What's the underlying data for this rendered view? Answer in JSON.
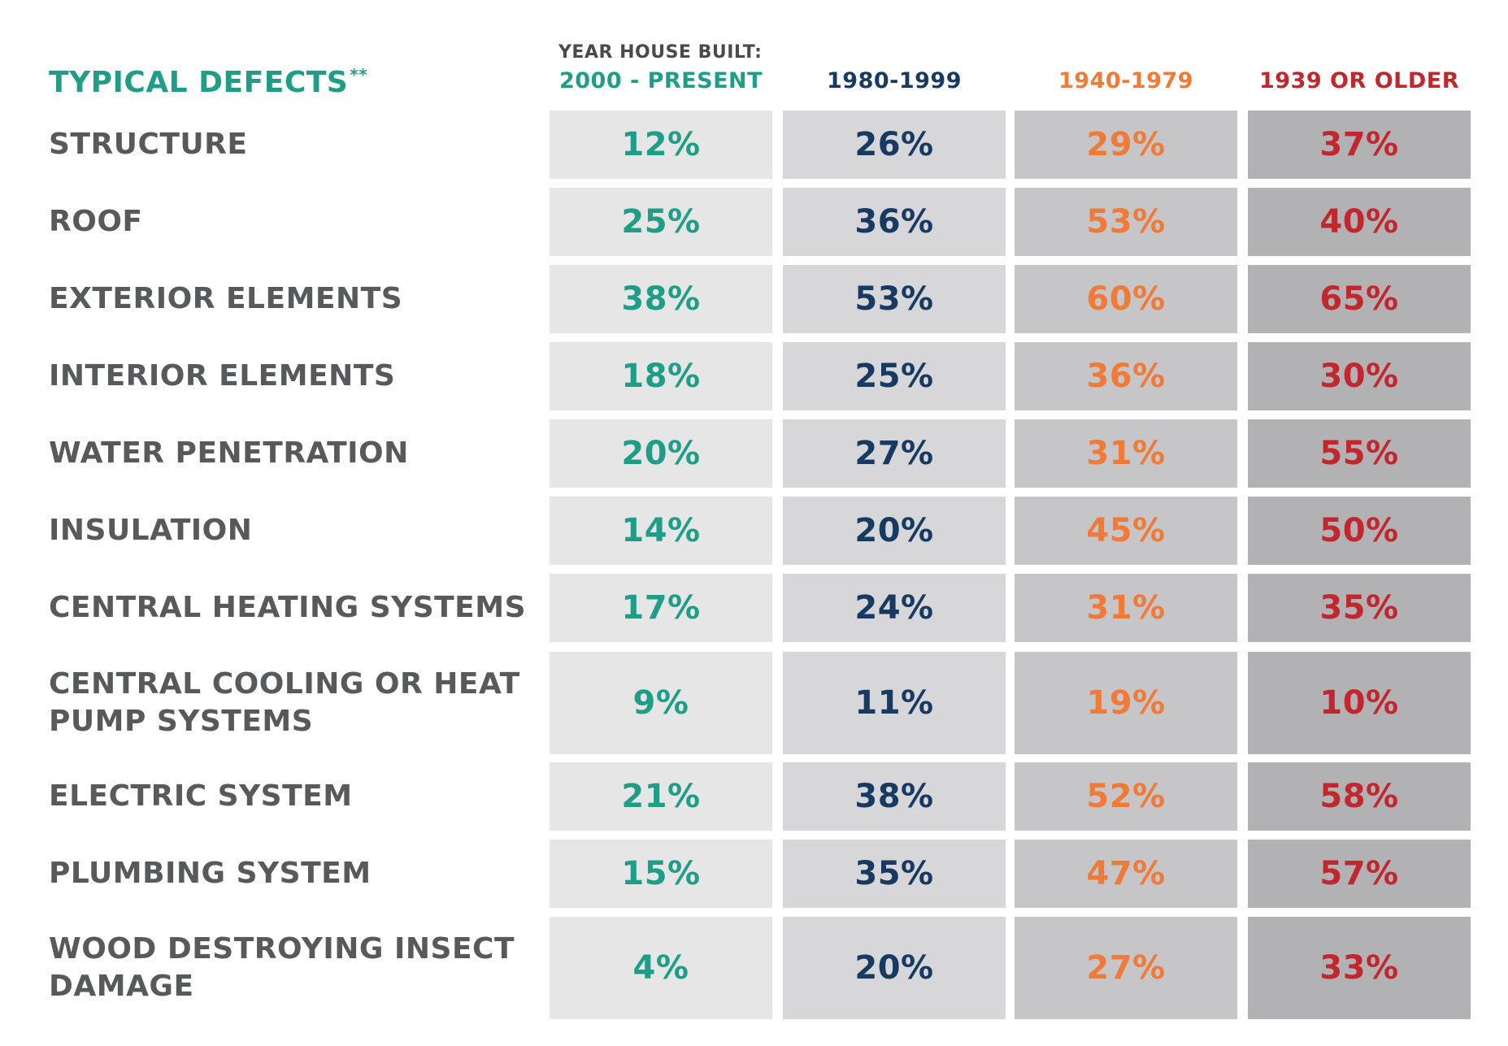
{
  "header": {
    "defects_title": "TYPICAL DEFECTS",
    "defects_title_marker": "**",
    "year_label": "YEAR HOUSE BUILT:"
  },
  "colors": {
    "title": "#1e9e87",
    "row_label": "#58595b",
    "col_text": [
      "#1e9e87",
      "#173a63",
      "#f07a36",
      "#c1272d"
    ],
    "col_bg": [
      "#e6e6e7",
      "#d7d6d8",
      "#c6c5c7",
      "#b2b1b4"
    ]
  },
  "chart_data": {
    "type": "table",
    "title": "TYPICAL DEFECTS**",
    "column_group_label": "YEAR HOUSE BUILT:",
    "columns": [
      "2000 - PRESENT",
      "1980-1999",
      "1940-1979",
      "1939 OR OLDER"
    ],
    "rows": [
      {
        "label": [
          "STRUCTURE"
        ],
        "values": [
          "12%",
          "26%",
          "29%",
          "37%"
        ]
      },
      {
        "label": [
          "ROOF"
        ],
        "values": [
          "25%",
          "36%",
          "53%",
          "40%"
        ]
      },
      {
        "label": [
          "EXTERIOR ELEMENTS"
        ],
        "values": [
          "38%",
          "53%",
          "60%",
          "65%"
        ]
      },
      {
        "label": [
          "INTERIOR ELEMENTS"
        ],
        "values": [
          "18%",
          "25%",
          "36%",
          "30%"
        ]
      },
      {
        "label": [
          "WATER PENETRATION"
        ],
        "values": [
          "20%",
          "27%",
          "31%",
          "55%"
        ]
      },
      {
        "label": [
          "INSULATION"
        ],
        "values": [
          "14%",
          "20%",
          "45%",
          "50%"
        ]
      },
      {
        "label": [
          "CENTRAL HEATING SYSTEMS"
        ],
        "values": [
          "17%",
          "24%",
          "31%",
          "35%"
        ]
      },
      {
        "label": [
          "CENTRAL COOLING OR HEAT",
          "PUMP SYSTEMS"
        ],
        "values": [
          "9%",
          "11%",
          "19%",
          "10%"
        ]
      },
      {
        "label": [
          "ELECTRIC SYSTEM"
        ],
        "values": [
          "21%",
          "38%",
          "52%",
          "58%"
        ]
      },
      {
        "label": [
          "PLUMBING SYSTEM"
        ],
        "values": [
          "15%",
          "35%",
          "47%",
          "57%"
        ]
      },
      {
        "label": [
          "WOOD DESTROYING INSECT",
          "DAMAGE"
        ],
        "values": [
          "4%",
          "20%",
          "27%",
          "33%"
        ]
      }
    ]
  }
}
